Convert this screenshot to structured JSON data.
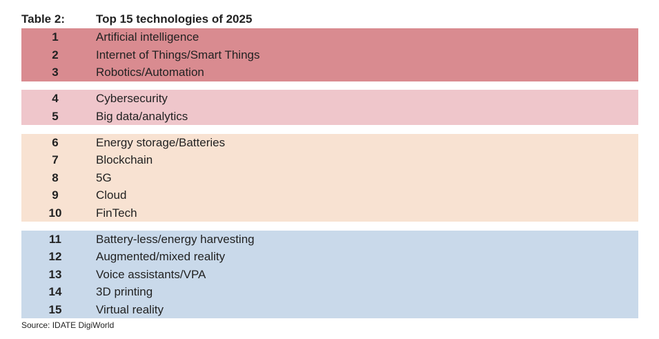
{
  "header": {
    "label": "Table 2:",
    "title": "Top 15 technologies of 2025"
  },
  "table": {
    "groups": [
      {
        "rows": [
          {
            "rank": 1,
            "name": "Artificial intelligence"
          },
          {
            "rank": 2,
            "name": "Internet of Things/Smart Things"
          },
          {
            "rank": 3,
            "name": "Robotics/Automation"
          }
        ]
      },
      {
        "rows": [
          {
            "rank": 4,
            "name": "Cybersecurity"
          },
          {
            "rank": 5,
            "name": "Big data/analytics"
          }
        ]
      },
      {
        "rows": [
          {
            "rank": 6,
            "name": "Energy storage/Batteries"
          },
          {
            "rank": 7,
            "name": "Blockchain"
          },
          {
            "rank": 8,
            "name": "5G"
          },
          {
            "rank": 9,
            "name": "Cloud"
          },
          {
            "rank": 10,
            "name": "FinTech"
          }
        ]
      },
      {
        "rows": [
          {
            "rank": 11,
            "name": "Battery-less/energy harvesting"
          },
          {
            "rank": 12,
            "name": "Augmented/mixed reality"
          },
          {
            "rank": 13,
            "name": "Voice assistants/VPA"
          },
          {
            "rank": 14,
            "name": "3D printing"
          },
          {
            "rank": 15,
            "name": "Virtual reality"
          }
        ]
      }
    ]
  },
  "source": "Source: IDATE DigiWorld"
}
